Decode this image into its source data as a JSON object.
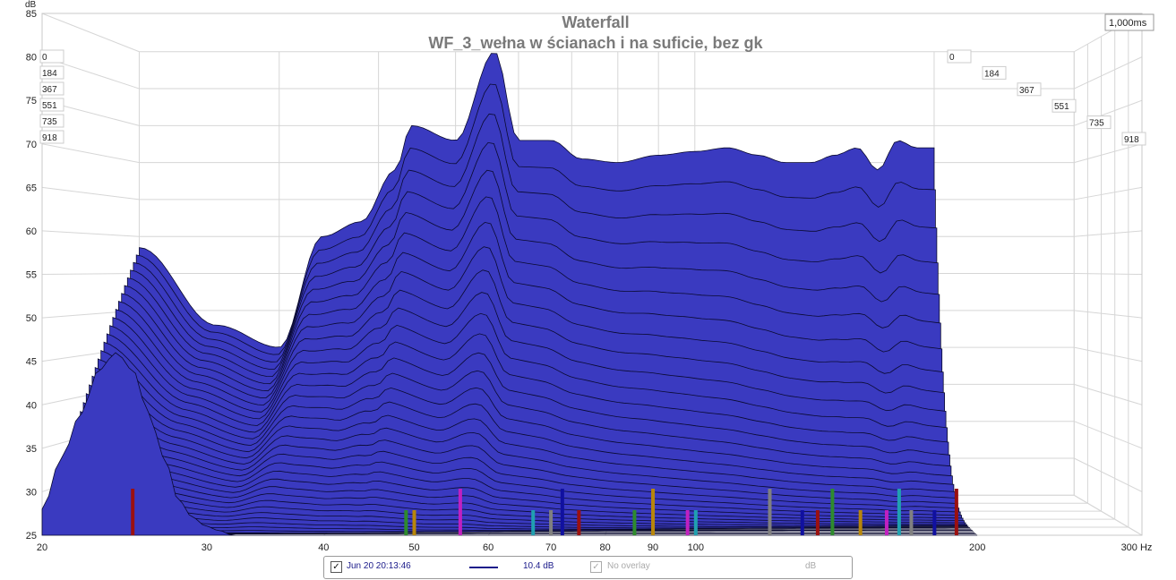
{
  "chart_data": {
    "type": "area",
    "title": "Waterfall",
    "subtitle": "WF_3_wełna w ścianach i na suficie, bez gk",
    "ylabel": "dB",
    "xlabel": "Hz",
    "x_scale": "log",
    "xlim": [
      20,
      300
    ],
    "ylim": [
      25,
      85
    ],
    "x_ticks": [
      "20",
      "30",
      "40",
      "50",
      "60",
      "70",
      "80",
      "90",
      "100",
      "200",
      "300 Hz"
    ],
    "x_tick_values": [
      20,
      30,
      40,
      50,
      60,
      70,
      80,
      90,
      100,
      200,
      300
    ],
    "y_ticks": [
      "25",
      "30",
      "35",
      "40",
      "45",
      "50",
      "55",
      "60",
      "65",
      "70",
      "75",
      "80",
      "85"
    ],
    "y_tick_values": [
      25,
      30,
      35,
      40,
      45,
      50,
      55,
      60,
      65,
      70,
      75,
      80,
      85
    ],
    "y_unit_label": "dB",
    "time_axis_label": "1,000ms",
    "time_ticks": [
      "0",
      "184",
      "367",
      "551",
      "735",
      "918"
    ],
    "time_tick_values_ms": [
      0,
      184,
      367,
      551,
      735,
      918
    ],
    "fill_color": "#3a3ac0",
    "grid": true,
    "front_slice_db": {
      "x": [
        20,
        21,
        22,
        23,
        24,
        25,
        26,
        27,
        28,
        29,
        30,
        31,
        32
      ],
      "y": [
        28,
        34,
        39,
        44,
        46,
        44,
        39,
        34,
        29,
        27,
        26,
        25.5,
        25
      ]
    },
    "back_slice_db": {
      "x": [
        20,
        25,
        30,
        34,
        38,
        42,
        44,
        50,
        56,
        60,
        66,
        72,
        80,
        90,
        100,
        110,
        120,
        130,
        140,
        150,
        160,
        170,
        180,
        190
      ],
      "y": [
        58.5,
        48,
        45,
        60,
        62,
        69,
        75,
        73,
        85,
        73,
        73,
        70.5,
        70,
        71,
        71.5,
        72,
        71,
        70,
        70,
        71,
        72,
        69,
        73,
        72
      ]
    },
    "peak_markers_hz": [
      25,
      49,
      50,
      56,
      67,
      70,
      72,
      75,
      86,
      90,
      98,
      100,
      120,
      130,
      135,
      140,
      150,
      160,
      165,
      170,
      180,
      190
    ],
    "legend": {
      "date": "Jun 20 20:13:46",
      "level": "10.4 dB",
      "overlay": "No overlay",
      "unit": "dB"
    }
  }
}
